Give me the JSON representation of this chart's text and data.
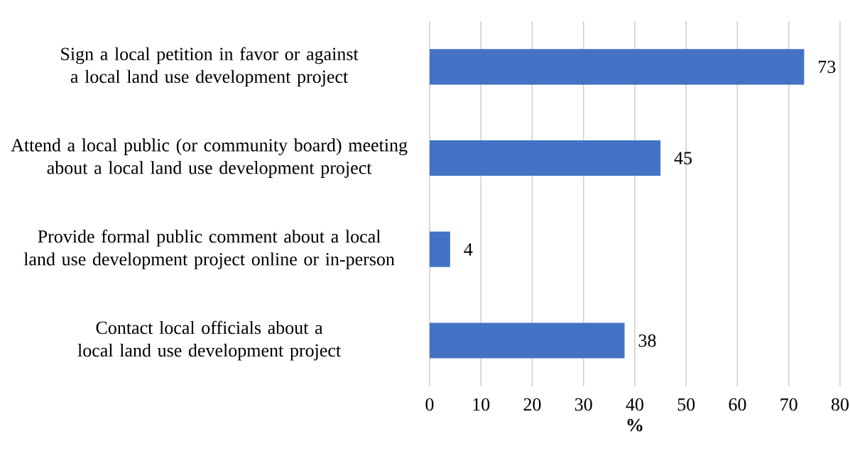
{
  "chart_data": {
    "type": "bar",
    "orientation": "horizontal",
    "xlabel": "%",
    "categories": [
      "Sign a local petition in favor or against a local land use development project",
      "Attend a local public (or community board) meeting about a local land use development project",
      "Provide formal public comment about a local land use development project online or in-person",
      "Contact local officials about a local land use development project"
    ],
    "values": [
      73,
      45,
      4,
      38
    ],
    "color": "#4472c4",
    "data_labels": true,
    "xlim": [
      0,
      80
    ],
    "xticks": [
      0,
      10,
      20,
      30,
      40,
      50,
      60,
      70,
      80
    ],
    "grid": "x"
  }
}
